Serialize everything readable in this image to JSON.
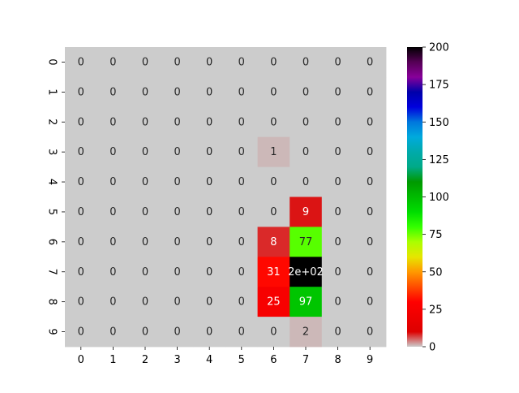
{
  "chart_data": {
    "type": "heatmap",
    "title": "",
    "xlabel": "",
    "ylabel": "",
    "x_tick_labels": [
      "0",
      "1",
      "2",
      "3",
      "4",
      "5",
      "6",
      "7",
      "8",
      "9"
    ],
    "y_tick_labels": [
      "0",
      "1",
      "2",
      "3",
      "4",
      "5",
      "6",
      "7",
      "8",
      "9"
    ],
    "values": [
      [
        0,
        0,
        0,
        0,
        0,
        0,
        0,
        0,
        0,
        0
      ],
      [
        0,
        0,
        0,
        0,
        0,
        0,
        0,
        0,
        0,
        0
      ],
      [
        0,
        0,
        0,
        0,
        0,
        0,
        0,
        0,
        0,
        0
      ],
      [
        0,
        0,
        0,
        0,
        0,
        0,
        1,
        0,
        0,
        0
      ],
      [
        0,
        0,
        0,
        0,
        0,
        0,
        0,
        0,
        0,
        0
      ],
      [
        0,
        0,
        0,
        0,
        0,
        0,
        0,
        9,
        0,
        0
      ],
      [
        0,
        0,
        0,
        0,
        0,
        0,
        8,
        77,
        0,
        0
      ],
      [
        0,
        0,
        0,
        0,
        0,
        0,
        31,
        200,
        0,
        0
      ],
      [
        0,
        0,
        0,
        0,
        0,
        0,
        25,
        97,
        0,
        0
      ],
      [
        0,
        0,
        0,
        0,
        0,
        0,
        0,
        2,
        0,
        0
      ]
    ],
    "cell_labels": [
      [
        "0",
        "0",
        "0",
        "0",
        "0",
        "0",
        "0",
        "0",
        "0",
        "0"
      ],
      [
        "0",
        "0",
        "0",
        "0",
        "0",
        "0",
        "0",
        "0",
        "0",
        "0"
      ],
      [
        "0",
        "0",
        "0",
        "0",
        "0",
        "0",
        "0",
        "0",
        "0",
        "0"
      ],
      [
        "0",
        "0",
        "0",
        "0",
        "0",
        "0",
        "1",
        "0",
        "0",
        "0"
      ],
      [
        "0",
        "0",
        "0",
        "0",
        "0",
        "0",
        "0",
        "0",
        "0",
        "0"
      ],
      [
        "0",
        "0",
        "0",
        "0",
        "0",
        "0",
        "0",
        "9",
        "0",
        "0"
      ],
      [
        "0",
        "0",
        "0",
        "0",
        "0",
        "0",
        "8",
        "77",
        "0",
        "0"
      ],
      [
        "0",
        "0",
        "0",
        "0",
        "0",
        "0",
        "31",
        "2e+02",
        "0",
        "0"
      ],
      [
        "0",
        "0",
        "0",
        "0",
        "0",
        "0",
        "25",
        "97",
        "0",
        "0"
      ],
      [
        "0",
        "0",
        "0",
        "0",
        "0",
        "0",
        "0",
        "2",
        "0",
        "0"
      ]
    ],
    "colorbar": {
      "range": [
        0,
        200
      ],
      "ticks": [
        0,
        25,
        50,
        75,
        100,
        125,
        150,
        175,
        200
      ],
      "colormap": "nipy_spectral_r",
      "colormap_stops": [
        {
          "v": 0.0,
          "c": "#cccccc"
        },
        {
          "v": 0.05,
          "c": "#dd0000"
        },
        {
          "v": 0.15,
          "c": "#ff0000"
        },
        {
          "v": 0.25,
          "c": "#ff9900"
        },
        {
          "v": 0.3,
          "c": "#e6e600"
        },
        {
          "v": 0.35,
          "c": "#aaff00"
        },
        {
          "v": 0.4,
          "c": "#33ff00"
        },
        {
          "v": 0.45,
          "c": "#00dd00"
        },
        {
          "v": 0.5,
          "c": "#00bb00"
        },
        {
          "v": 0.55,
          "c": "#009900"
        },
        {
          "v": 0.6,
          "c": "#00aa88"
        },
        {
          "v": 0.65,
          "c": "#00aaaa"
        },
        {
          "v": 0.7,
          "c": "#00aadd"
        },
        {
          "v": 0.75,
          "c": "#0077dd"
        },
        {
          "v": 0.8,
          "c": "#0000dd"
        },
        {
          "v": 0.85,
          "c": "#0000aa"
        },
        {
          "v": 0.9,
          "c": "#880099"
        },
        {
          "v": 0.95,
          "c": "#550055"
        },
        {
          "v": 1.0,
          "c": "#000000"
        }
      ]
    },
    "grid": false,
    "legend": "colorbar-right"
  }
}
